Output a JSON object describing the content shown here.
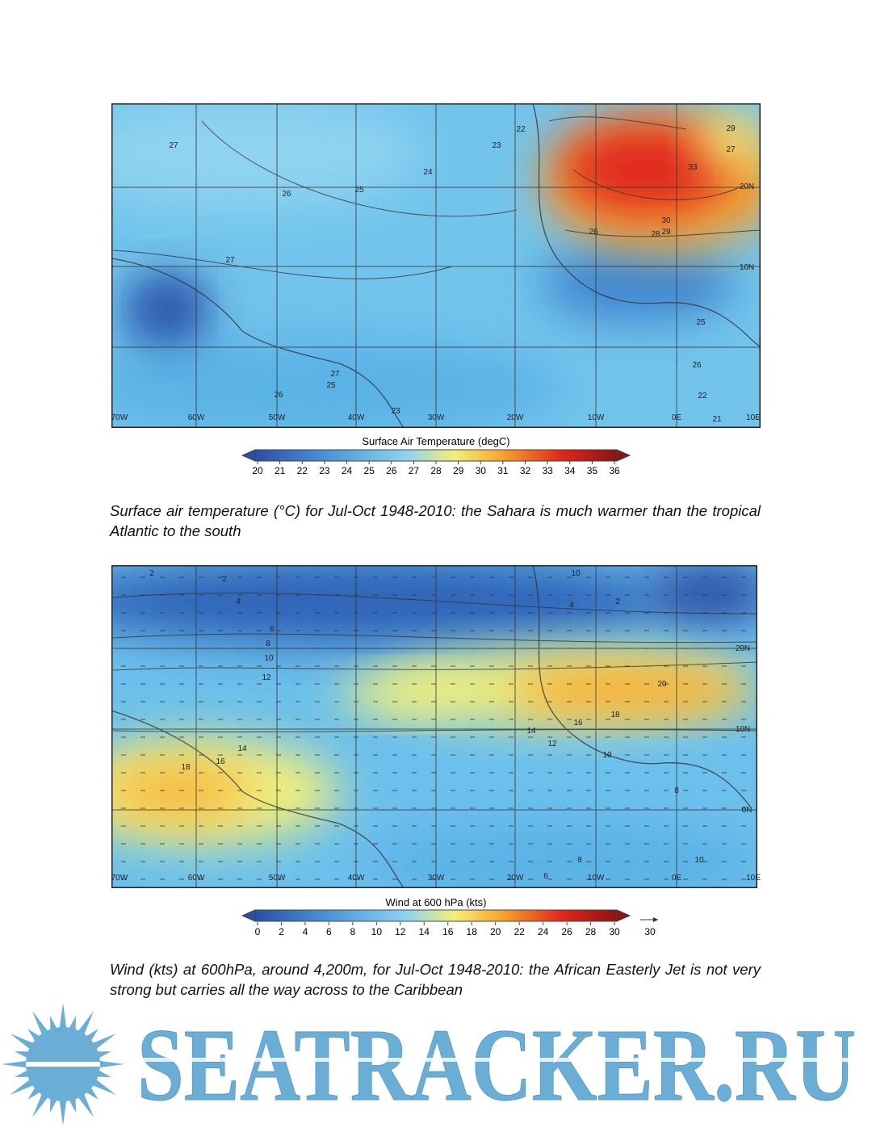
{
  "maps": [
    {
      "colorbar_title": "Surface Air Temperature (degC)",
      "colorbar_ticks": [
        20,
        21,
        22,
        23,
        24,
        25,
        26,
        27,
        28,
        29,
        30,
        31,
        32,
        33,
        34,
        35,
        36
      ],
      "lon_labels": [
        "70W",
        "60W",
        "50W",
        "40W",
        "30W",
        "20W",
        "10W",
        "0E",
        "10E"
      ],
      "lat_labels": [
        "20N",
        "10N"
      ],
      "contour_labels": [
        "27",
        "26",
        "25",
        "24",
        "23",
        "22",
        "29",
        "27",
        "33",
        "30",
        "29",
        "28",
        "26",
        "27",
        "26",
        "25",
        "23",
        "22",
        "21",
        "25",
        "26",
        "27"
      ]
    },
    {
      "colorbar_title": "Wind at 600 hPa (kts)",
      "colorbar_ticks": [
        0,
        2,
        4,
        6,
        8,
        10,
        12,
        14,
        16,
        18,
        20,
        22,
        24,
        26,
        28,
        30
      ],
      "vector_key": "30",
      "lon_labels": [
        "70W",
        "60W",
        "50W",
        "40W",
        "30W",
        "20W",
        "10W",
        "0E",
        "10E"
      ],
      "lat_labels": [
        "20N",
        "10N",
        "0N"
      ],
      "contour_labels": [
        "2",
        "2",
        "4",
        "6",
        "8",
        "10",
        "12",
        "10",
        "2",
        "4",
        "20",
        "18",
        "16",
        "14",
        "12",
        "10",
        "18",
        "16",
        "14",
        "8",
        "8",
        "6",
        "10"
      ]
    }
  ],
  "captions": [
    "Surface air temperature (°C) for Jul-Oct 1948-2010: the Sahara is much warmer than the tropical Atlantic to the south",
    "Wind (kts) at 600hPa, around 4,200m, for Jul-Oct 1948-2010: the African Easterly Jet is not very strong but carries all the way across to the Caribbean"
  ],
  "logo": "SEATRACKER.RU"
}
